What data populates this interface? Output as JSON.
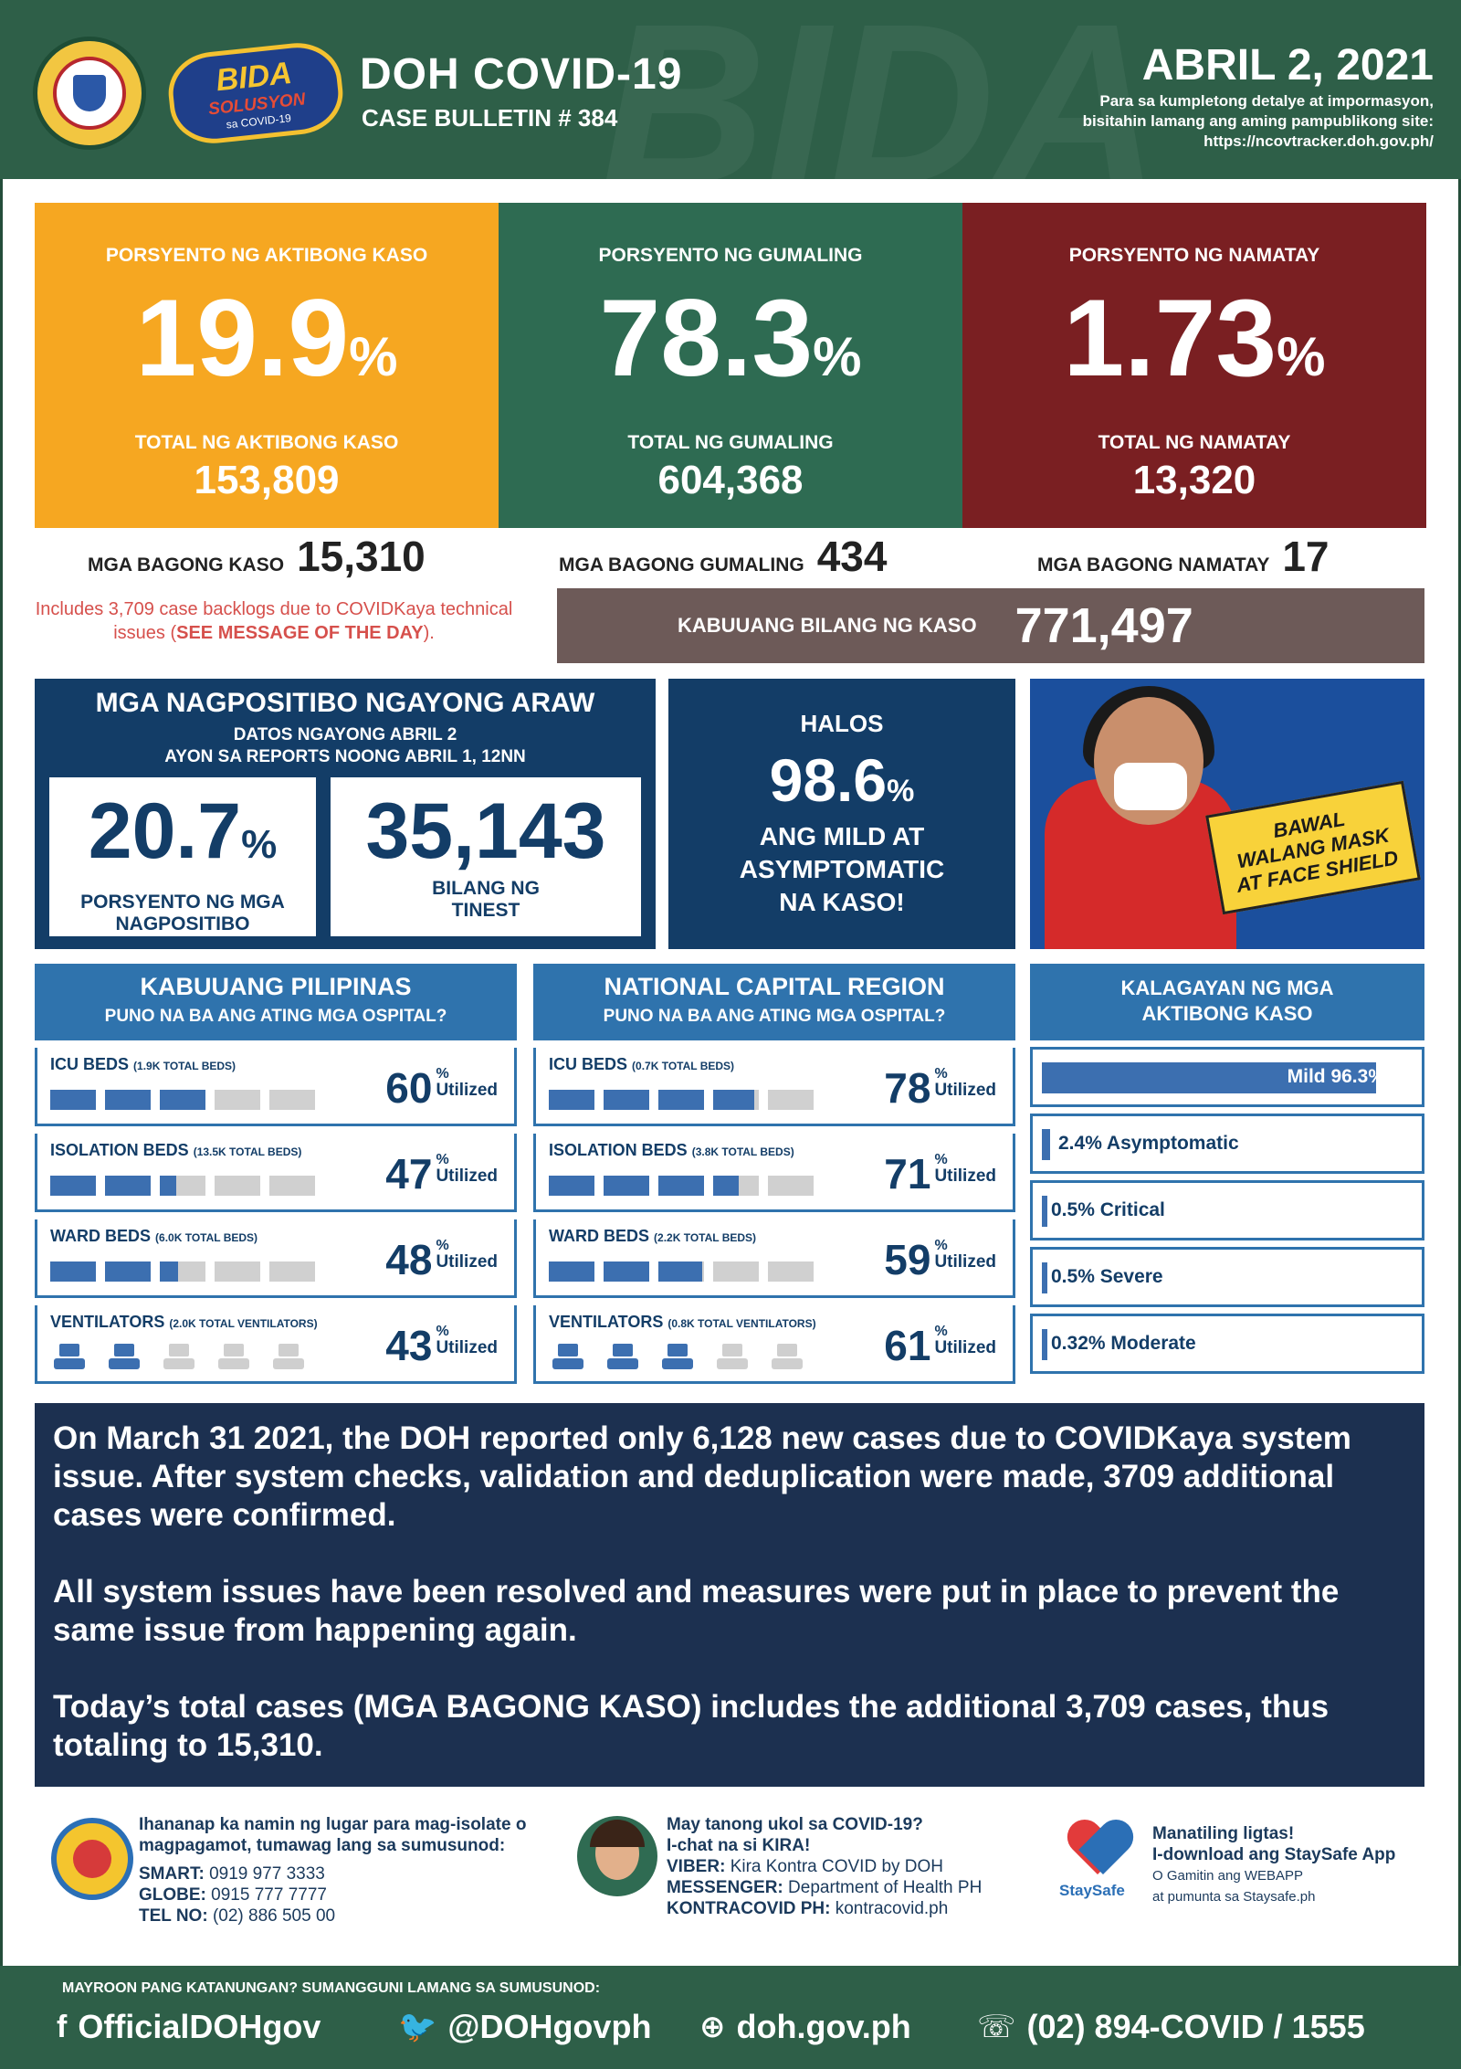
{
  "header": {
    "title": "DOH COVID-19",
    "subtitle": "CASE BULLETIN # 384",
    "date": "ABRIL 2, 2021",
    "info_line1": "Para sa kumpletong detalye at impormasyon,",
    "info_line2": "bisitahin lamang ang aming pampublikong site:",
    "info_url": "https://ncovtracker.doh.gov.ph/",
    "logo2_line1": "BIDA",
    "logo2_line2": "SOLUSYON",
    "logo2_line3": "sa COVID-19"
  },
  "stats": {
    "active": {
      "label": "PORSYENTO NG AKTIBONG KASO",
      "percent": "19.9",
      "total_label": "TOTAL NG AKTIBONG KASO",
      "total": "153,809",
      "color": "#f6a721"
    },
    "recovered": {
      "label": "PORSYENTO NG GUMALING",
      "percent": "78.3",
      "total_label": "TOTAL NG GUMALING",
      "total": "604,368",
      "color": "#2e6b52"
    },
    "deaths": {
      "label": "PORSYENTO NG NAMATAY",
      "percent": "1.73",
      "total_label": "TOTAL NG NAMATAY",
      "total": "13,320",
      "color": "#7a1f22"
    },
    "pct_sign": "%"
  },
  "new": {
    "cases_label": "MGA BAGONG KASO",
    "cases": "15,310",
    "recovered_label": "MGA BAGONG GUMALING",
    "recovered": "434",
    "deaths_label": "MGA BAGONG NAMATAY",
    "deaths": "17",
    "backlog_text": "Includes 3,709 case backlogs due to COVIDKaya technical issues (",
    "backlog_link": "SEE MESSAGE OF THE DAY",
    "backlog_end": ").",
    "total_label": "KABUUANG BILANG NG KASO",
    "total": "771,497"
  },
  "positivity": {
    "title": "MGA NAGPOSITIBO NGAYONG ARAW",
    "sub1": "DATOS NGAYONG ABRIL 2",
    "sub2": "AYON SA REPORTS NOONG ABRIL 1, 12NN",
    "rate": "20.7",
    "rate_caption1": "PORSYENTO NG MGA",
    "rate_caption2": "NAGPOSITIBO",
    "tested": "35,143",
    "tested_caption1": "BILANG NG",
    "tested_caption2": "TINEST"
  },
  "halos": {
    "word": "HALOS",
    "percent": "98.6",
    "line1": "ANG MILD AT",
    "line2": "ASYMPTOMATIC",
    "line3": "NA KASO!"
  },
  "photo": {
    "sign_line1": "BAWAL",
    "sign_line2": "WALANG MASK",
    "sign_line3": "AT FACE SHIELD"
  },
  "hospitals": {
    "utilized_label": "Utilized",
    "ph": {
      "title": "KABUUANG PILIPINAS",
      "subtitle": "PUNO NA BA ANG ATING MGA OSPITAL?",
      "rows": [
        {
          "name": "ICU BEDS",
          "detail": "(1.9K TOTAL BEDS)",
          "percent": "60",
          "fill": 0.6
        },
        {
          "name": "ISOLATION BEDS",
          "detail": "(13.5K TOTAL BEDS)",
          "percent": "47",
          "fill": 0.47
        },
        {
          "name": "WARD BEDS",
          "detail": "(6.0K TOTAL BEDS)",
          "percent": "48",
          "fill": 0.48
        },
        {
          "name": "VENTILATORS",
          "detail": "(2.0K TOTAL VENTILATORS)",
          "percent": "43",
          "fill": 0.43
        }
      ]
    },
    "ncr": {
      "title": "NATIONAL CAPITAL REGION",
      "subtitle": "PUNO NA BA ANG ATING MGA OSPITAL?",
      "rows": [
        {
          "name": "ICU BEDS",
          "detail": "(0.7K TOTAL BEDS)",
          "percent": "78",
          "fill": 0.78
        },
        {
          "name": "ISOLATION BEDS",
          "detail": "(3.8K TOTAL BEDS)",
          "percent": "71",
          "fill": 0.71
        },
        {
          "name": "WARD BEDS",
          "detail": "(2.2K TOTAL BEDS)",
          "percent": "59",
          "fill": 0.59
        },
        {
          "name": "VENTILATORS",
          "detail": "(0.8K TOTAL VENTILATORS)",
          "percent": "61",
          "fill": 0.61
        }
      ]
    }
  },
  "kalagayan": {
    "title1": "KALAGAYAN NG MGA",
    "title2": "AKTIBONG KASO",
    "items": [
      {
        "label": "Mild 96.3%",
        "value": 96.3
      },
      {
        "label": "2.4% Asymptomatic",
        "value": 2.4
      },
      {
        "label": "0.5% Critical",
        "value": 0.5
      },
      {
        "label": "0.5% Severe",
        "value": 0.5
      },
      {
        "label": "0.32% Moderate",
        "value": 0.32
      }
    ]
  },
  "message": {
    "p1": "On March 31 2021, the DOH reported only 6,128 new cases due to COVIDKaya system issue. After system checks, validation and deduplication were made, 3709 additional cases were confirmed.",
    "p2": "All system issues have been resolved and measures were put in place to prevent the same issue from happening again.",
    "p3": "Today’s total cases (MGA BAGONG KASO) includes the additional 3,709 cases, thus totaling to 15,310."
  },
  "contacts": {
    "isolate_text": "Ihananap ka namin ng lugar para mag-isolate o magpagamot, tumawag lang sa sumusunod:",
    "smart_label": "SMART:",
    "smart": "0919 977 3333",
    "globe_label": "GLOBE:",
    "globe": "0915 777 7777",
    "tel_label": "TEL NO:",
    "tel": "(02) 886 505 00",
    "kira_q": "May tanong ukol sa COVID-19?",
    "kira_chat": "I-chat na si KIRA!",
    "viber_label": "VIBER:",
    "viber": "Kira Kontra COVID by DOH",
    "messenger_label": "MESSENGER:",
    "messenger": "Department of Health PH",
    "kontra_label": "KONTRACOVID PH:",
    "kontra": "kontracovid.ph",
    "staysafe_1": "Manatiling ligtas!",
    "staysafe_2": "I-download ang StaySafe App",
    "staysafe_3": "O Gamitin ang WEBAPP",
    "staysafe_4": "at pumunta sa Staysafe.ph",
    "staysafe_logo": "StaySafe"
  },
  "footer": {
    "question": "MAYROON PANG KATANUNGAN? SUMANGGUNI LAMANG SA SUMUSUNOD:",
    "facebook": "OfficialDOHgov",
    "twitter": "@DOHgovph",
    "web": "doh.gov.ph",
    "phone": "(02) 894-COVID  /  1555"
  }
}
